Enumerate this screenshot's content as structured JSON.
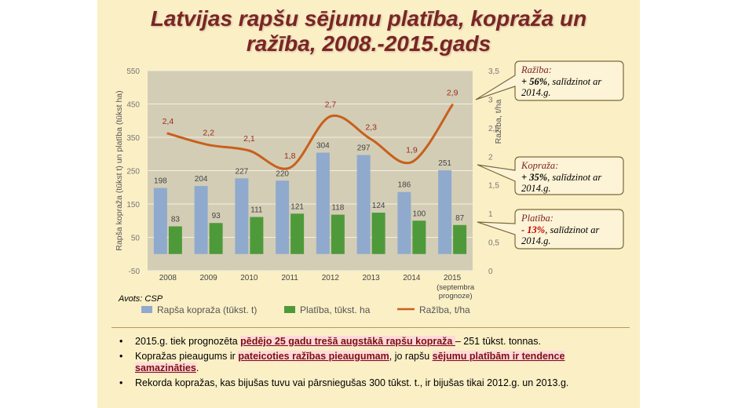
{
  "title": {
    "line1": "Latvijas rapšu sējumu platība, kopraža un",
    "line2": "ražība, 2008.-2015.gads"
  },
  "source": "Avots: CSP",
  "colors": {
    "bar1": "#8faacd",
    "bar2": "#4e9a3a",
    "line": "#c8601c",
    "title": "#7a2525",
    "labelRed": "#9c2a1a"
  },
  "chart_data": {
    "type": "bar+line",
    "categories": [
      "2008",
      "2009",
      "2010",
      "2011",
      "2012",
      "2013",
      "2014",
      "2015"
    ],
    "category_sublabels": [
      "",
      "",
      "",
      "",
      "",
      "",
      "",
      "(septembra prognoze)"
    ],
    "series": [
      {
        "name": "Rapša kopraža (tūkst. t)",
        "type": "bar",
        "axis": "left",
        "values": [
          198,
          204,
          227,
          220,
          304,
          297,
          186,
          251
        ]
      },
      {
        "name": "Platība, tūkst. ha",
        "type": "bar",
        "axis": "left",
        "values": [
          83,
          93,
          111,
          121,
          118,
          124,
          100,
          87
        ]
      },
      {
        "name": "Ražība, t/ha",
        "type": "line",
        "axis": "right",
        "smooth": true,
        "values": [
          2.4,
          2.2,
          2.1,
          1.8,
          2.7,
          2.3,
          1.9,
          2.9
        ],
        "labels": [
          "2,4",
          "2,2",
          "2,1",
          "1,8",
          "2,7",
          "2,3",
          "1,9",
          "2,9"
        ]
      }
    ],
    "ylabel_left": "Rapša kopraža (tūkst t) un platība (tūkst ha)",
    "ylabel_right": "Ražība, t/ha",
    "ylim_left": [
      -50,
      550
    ],
    "yticks_left": [
      "550",
      "450",
      "350",
      "250",
      "150",
      "50",
      "-50"
    ],
    "ylim_right": [
      0,
      3.5
    ],
    "yticks_right": [
      "3,5",
      "3",
      "2,5",
      "2",
      "1,5",
      "1",
      "0,5",
      "0"
    ],
    "grid": true,
    "legend_position": "bottom"
  },
  "callouts": [
    {
      "head": "Ražība:",
      "value": "+ 56%",
      "rest": ", salīdzinot ar",
      "line2": "2014.g."
    },
    {
      "head": "Kopraža:",
      "value": "+ 35%",
      "rest": ", salīdzinot ar",
      "line2": "2014.g."
    },
    {
      "head": "Platība:",
      "value": "- 13%",
      "rest": ", salīdzinot ar",
      "line2": "2014.g."
    }
  ],
  "bullets": [
    {
      "pre": "2015.g. tiek prognozēta ",
      "hl": "pēdējo 25 gadu trešā augstākā rapšu kopraža ",
      "post": "– 251 tūkst. tonnas."
    },
    {
      "pre": "Kopražas pieaugums ir ",
      "hl": "pateicoties ražības pieaugumam",
      "mid": ", jo rapšu ",
      "hl2": "sējumu platībām ir tendence samazināties",
      "post": "."
    },
    {
      "pre": "Rekorda kopražas, kas bijušas tuvu vai pārsniegušas 300 tūkst. t., ir bijušas tikai 2012.g. un 2013.g."
    }
  ],
  "bullet_symbol": "•"
}
